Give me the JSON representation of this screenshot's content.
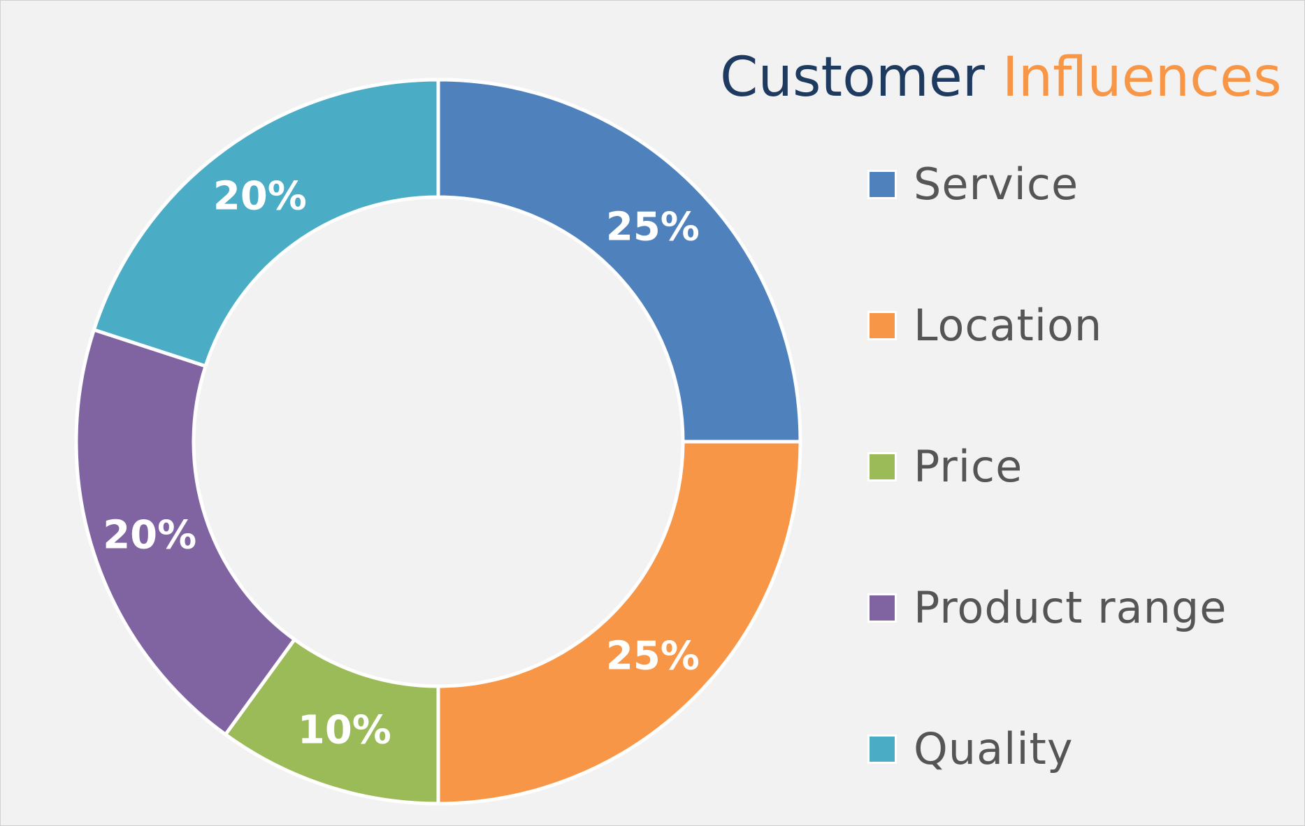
{
  "chart_data": {
    "type": "pie",
    "donut": true,
    "title_parts": [
      "Customer",
      "Influences"
    ],
    "title_colors": [
      "#1f3a5f",
      "#f79646"
    ],
    "categories": [
      "Service",
      "Location",
      "Price",
      "Product range",
      "Quality"
    ],
    "values": [
      25,
      25,
      10,
      20,
      20
    ],
    "data_labels": [
      "25%",
      "25%",
      "10%",
      "20%",
      "20%"
    ],
    "colors": [
      "#4f81bd",
      "#f79646",
      "#9bbb59",
      "#8064a2",
      "#4bacc6"
    ],
    "legend_position": "right",
    "start_angle": "12 o'clock",
    "direction": "clockwise"
  }
}
